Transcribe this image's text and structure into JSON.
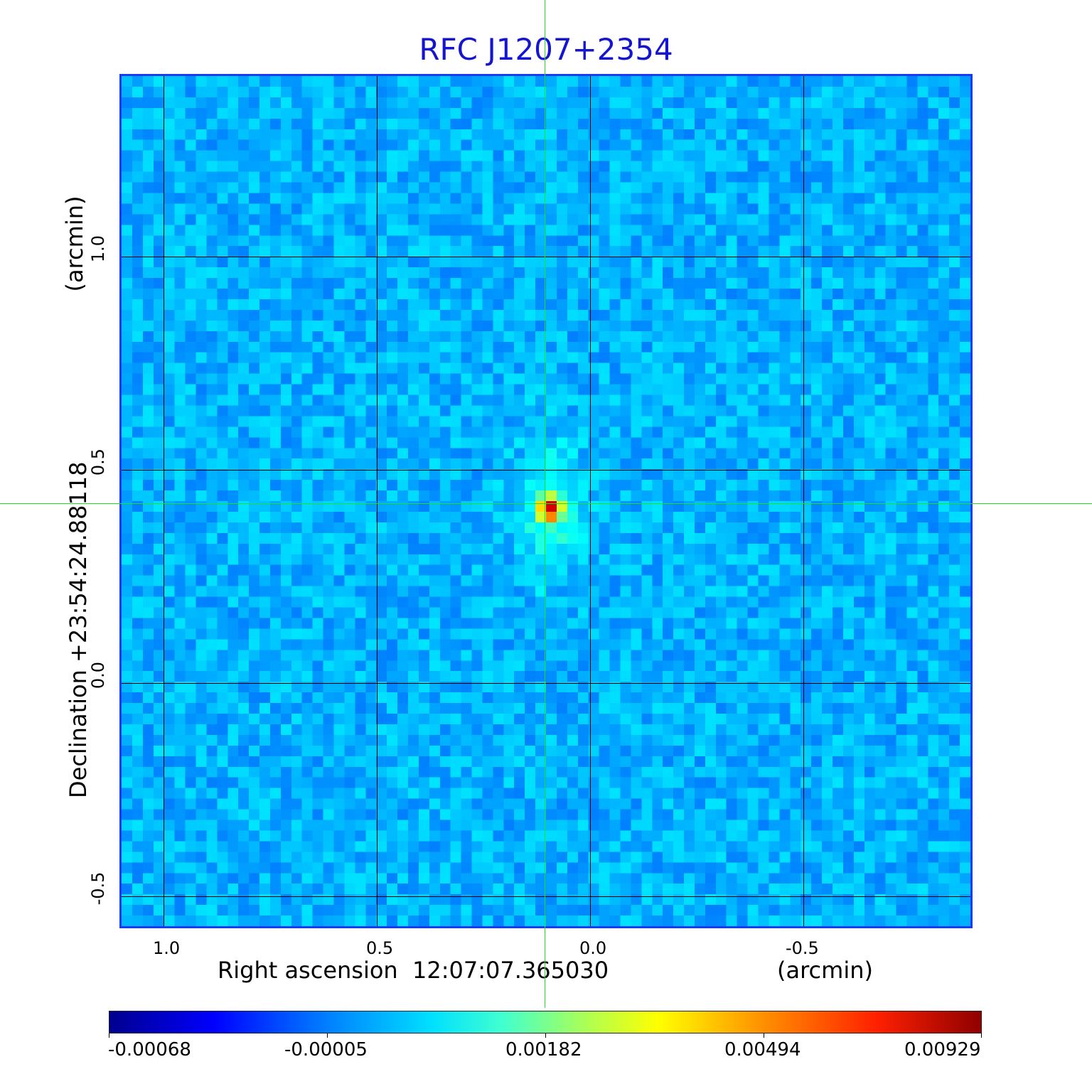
{
  "title": "RFC J1207+2354",
  "axes": {
    "x_label": "Right ascension  12:07:07.365030",
    "x_unit": "(arcmin)",
    "y_label": "Declination  +23:54:24.88118",
    "y_unit": "(arcmin)",
    "x_ticks": [
      "1.0",
      "0.5",
      "0.0",
      "-0.5"
    ],
    "y_ticks": [
      "1.0",
      "0.5",
      "0.0",
      "-0.5"
    ]
  },
  "colorbar": {
    "labels": [
      "-0.00068",
      "-0.00005",
      "0.00182",
      "0.00494",
      "0.00929"
    ],
    "colormap": "jet"
  },
  "colors": {
    "title": "#1515d0",
    "crosshair": "#22e022",
    "frame": "#1a3cf0"
  }
}
